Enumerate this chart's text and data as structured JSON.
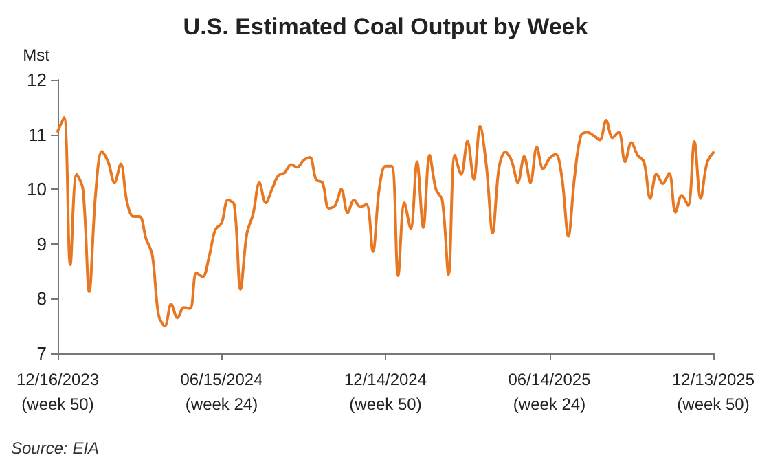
{
  "chart_data": {
    "type": "line",
    "title": "U.S. Estimated Coal Output by Week",
    "ylabel": "Mst",
    "annotations": [
      "Source: EIA"
    ],
    "categories": [
      "12/16/2023\n(week 50)",
      null,
      null,
      null,
      null,
      null,
      null,
      null,
      null,
      null,
      null,
      null,
      null,
      null,
      null,
      null,
      null,
      null,
      null,
      null,
      null,
      null,
      null,
      null,
      null,
      null,
      "06/15/2024\n(week 24)",
      null,
      null,
      null,
      null,
      null,
      null,
      null,
      null,
      null,
      null,
      null,
      null,
      null,
      null,
      null,
      null,
      null,
      null,
      null,
      null,
      null,
      null,
      null,
      null,
      null,
      "12/14/2024\n(week 50)",
      null,
      null,
      null,
      null,
      null,
      null,
      null,
      null,
      null,
      null,
      null,
      null,
      null,
      null,
      null,
      null,
      null,
      null,
      null,
      null,
      null,
      null,
      null,
      null,
      null,
      "06/14/2025\n(week 24)",
      null,
      null,
      null,
      null,
      null,
      null,
      null,
      null,
      null,
      null,
      null,
      null,
      null,
      null,
      null,
      null,
      null,
      null,
      null,
      null,
      null,
      null,
      null,
      null,
      null,
      "12/13/2025\n(week 50)"
    ],
    "series": [
      {
        "color": "#e87722",
        "values": [
          11.06,
          11.31,
          8.62,
          10.27,
          10.0,
          8.13,
          9.9,
          10.69,
          10.5,
          10.12,
          10.46,
          9.76,
          9.5,
          9.5,
          9.1,
          8.8,
          7.7,
          7.5,
          7.9,
          7.65,
          7.84,
          7.82,
          8.47,
          8.4,
          8.76,
          9.26,
          9.38,
          9.8,
          9.72,
          8.17,
          9.18,
          9.55,
          10.12,
          9.75,
          10.0,
          10.25,
          10.3,
          10.45,
          10.4,
          10.53,
          10.58,
          10.17,
          10.12,
          9.65,
          9.7,
          10.0,
          9.57,
          9.8,
          9.68,
          9.72,
          8.86,
          10.0,
          10.42,
          10.42,
          8.42,
          9.75,
          9.28,
          10.5,
          9.3,
          10.62,
          10.0,
          9.8,
          8.44,
          10.62,
          10.27,
          10.88,
          10.18,
          11.15,
          10.43,
          9.2,
          10.39,
          10.68,
          10.52,
          10.12,
          10.6,
          10.12,
          10.77,
          10.37,
          10.56,
          10.64,
          10.2,
          9.14,
          10.23,
          10.98,
          11.04,
          10.98,
          10.9,
          11.26,
          10.94,
          11.04,
          10.5,
          10.85,
          10.62,
          10.5,
          9.83,
          10.28,
          10.1,
          10.29,
          9.58,
          9.89,
          9.7,
          10.87,
          9.83,
          10.48,
          10.67
        ]
      }
    ],
    "ylim": [
      7,
      12
    ],
    "yticks": [
      7,
      8,
      9,
      10,
      11,
      12
    ],
    "grid": false,
    "marker": "none",
    "line_style": "solid"
  }
}
